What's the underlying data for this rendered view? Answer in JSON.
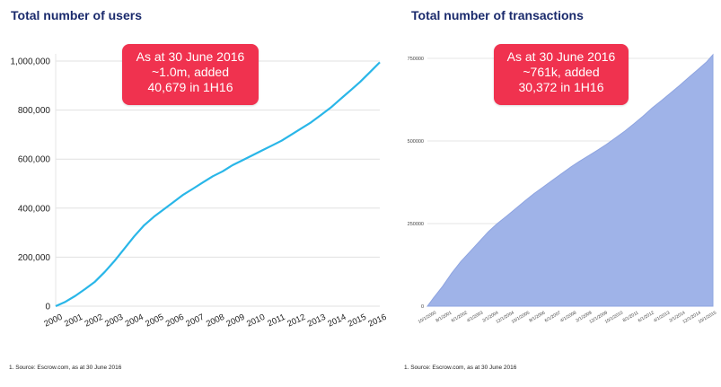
{
  "footnote": "1.   Source: Escrow.com, as at 30 June 2016",
  "chart_data": [
    {
      "type": "line",
      "title": "Total number of users",
      "color": "#29b6e8",
      "ylim": [
        0,
        1000000
      ],
      "y_ticks": [
        0,
        200000,
        400000,
        600000,
        800000,
        1000000
      ],
      "y_tick_labels": [
        "0",
        "200,000",
        "400,000",
        "600,000",
        "800,000",
        "1,000,000"
      ],
      "x_tick_labels": [
        "2000",
        "2001",
        "2002",
        "2003",
        "2004",
        "2005",
        "2006",
        "2007",
        "2008",
        "2009",
        "2010",
        "2011",
        "2012",
        "2013",
        "2014",
        "2015",
        "2016"
      ],
      "grid": true,
      "legend": "none",
      "callout": [
        "As at 30 June 2016",
        "~1.0m, added",
        "40,679 in 1H16"
      ],
      "series": [
        {
          "x": [
            2000.0,
            2000.5,
            2001.0,
            2001.5,
            2002.0,
            2002.5,
            2003.0,
            2003.5,
            2004.0,
            2004.5,
            2005.0,
            2005.5,
            2006.0,
            2006.5,
            2007.0,
            2007.5,
            2008.0,
            2008.5,
            2009.0,
            2009.5,
            2010.0,
            2010.5,
            2011.0,
            2011.5,
            2012.0,
            2012.5,
            2013.0,
            2013.5,
            2014.0,
            2014.5,
            2015.0,
            2015.5,
            2016.0,
            2016.5
          ],
          "values": [
            0,
            18000,
            42000,
            70000,
            100000,
            140000,
            185000,
            235000,
            285000,
            330000,
            365000,
            395000,
            425000,
            455000,
            480000,
            505000,
            530000,
            550000,
            575000,
            595000,
            615000,
            635000,
            655000,
            675000,
            700000,
            725000,
            750000,
            780000,
            810000,
            845000,
            880000,
            915000,
            955000,
            995000
          ]
        }
      ]
    },
    {
      "type": "area",
      "title": "Total number of transactions",
      "color": "#9fb3e8",
      "ylim": [
        0,
        761000
      ],
      "y_ticks": [
        0,
        250000,
        500000,
        750000
      ],
      "y_tick_labels": [
        "0",
        "250000",
        "500000",
        "750000"
      ],
      "x_tick_labels": [
        "10/1/2000",
        "8/1/2001",
        "6/1/2002",
        "4/1/2003",
        "2/1/2004",
        "12/1/2004",
        "10/1/2005",
        "8/1/2006",
        "6/1/2007",
        "4/1/2008",
        "2/1/2009",
        "12/1/2009",
        "10/1/2010",
        "8/1/2011",
        "6/1/2012",
        "4/1/2013",
        "2/1/2014",
        "12/1/2014",
        "10/1/2015"
      ],
      "grid": true,
      "legend": "none",
      "callout": [
        "As at 30 June 2016",
        "~761k, added",
        "30,372 in 1H16"
      ],
      "series": [
        {
          "x": [
            "2000-10",
            "2001-02",
            "2001-08",
            "2002-02",
            "2002-08",
            "2003-02",
            "2003-08",
            "2004-02",
            "2004-08",
            "2005-02",
            "2005-08",
            "2006-02",
            "2006-08",
            "2007-02",
            "2007-08",
            "2008-02",
            "2008-08",
            "2009-02",
            "2009-08",
            "2010-02",
            "2010-08",
            "2011-02",
            "2011-08",
            "2012-02",
            "2012-08",
            "2013-02",
            "2013-08",
            "2014-02",
            "2014-08",
            "2015-02",
            "2015-08",
            "2016-02",
            "2016-06"
          ],
          "values": [
            0,
            25000,
            60000,
            100000,
            135000,
            165000,
            195000,
            225000,
            250000,
            272000,
            295000,
            318000,
            340000,
            360000,
            380000,
            400000,
            420000,
            438000,
            455000,
            472000,
            490000,
            510000,
            530000,
            552000,
            575000,
            600000,
            622000,
            645000,
            668000,
            692000,
            716000,
            740000,
            761000
          ]
        }
      ]
    }
  ]
}
